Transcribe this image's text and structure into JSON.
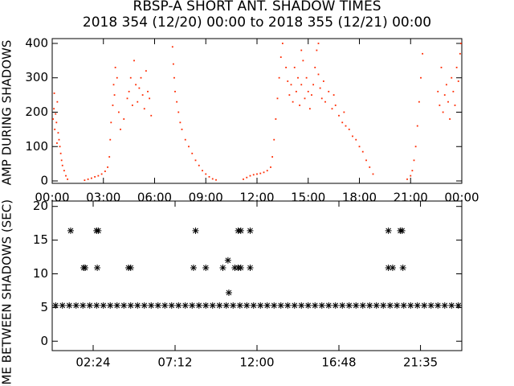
{
  "chart_data": [
    {
      "type": "scatter",
      "marker": "dot",
      "color": "#ff2a00",
      "title": "RBSP-A SHORT ANT. SHADOW TIMES",
      "subtitle": "2018 354 (12/20) 00:00 to 2018 355 (12/21) 00:00",
      "ylabel": "AMP DURING SHADOWS",
      "xlim": [
        0,
        24
      ],
      "ylim": [
        -7,
        414
      ],
      "xticks": [
        {
          "value": 0,
          "label": "00:00"
        },
        {
          "value": 3,
          "label": "03:00"
        },
        {
          "value": 6,
          "label": "06:00"
        },
        {
          "value": 9,
          "label": "09:00"
        },
        {
          "value": 12,
          "label": "12:00"
        },
        {
          "value": 15,
          "label": "15:00"
        },
        {
          "value": 18,
          "label": "18:00"
        },
        {
          "value": 21,
          "label": "21:00"
        },
        {
          "value": 24,
          "label": "00:00"
        }
      ],
      "yticks": [
        0,
        100,
        200,
        300,
        400
      ],
      "x": [
        0.05,
        0.1,
        0.15,
        0.2,
        0.25,
        0.3,
        0.35,
        0.4,
        0.45,
        0.5,
        0.55,
        0.6,
        0.7,
        0.8,
        0.9,
        0.12,
        0.28,
        1.9,
        2.1,
        2.3,
        2.5,
        2.7,
        2.9,
        3.1,
        3.25,
        3.35,
        3.4,
        3.45,
        3.55,
        3.6,
        3.7,
        3.65,
        3.8,
        3.9,
        4.2,
        4.4,
        4.5,
        4.6,
        4.7,
        4.8,
        4.9,
        5.0,
        5.1,
        5.2,
        5.3,
        5.4,
        5.5,
        5.6,
        5.7,
        5.8,
        4.0,
        7.05,
        7.1,
        7.15,
        7.2,
        7.3,
        7.4,
        7.5,
        7.6,
        7.8,
        8.0,
        8.2,
        8.4,
        8.6,
        8.8,
        9.0,
        9.2,
        9.4,
        9.6,
        11.2,
        11.4,
        11.6,
        11.8,
        12.0,
        12.2,
        12.4,
        12.6,
        12.8,
        12.9,
        13.0,
        13.1,
        13.2,
        13.3,
        13.4,
        13.5,
        13.7,
        13.8,
        13.9,
        14.0,
        14.1,
        14.2,
        14.3,
        14.4,
        14.5,
        14.6,
        14.7,
        14.8,
        14.9,
        15.0,
        15.1,
        15.2,
        15.3,
        15.4,
        15.5,
        15.6,
        15.7,
        15.8,
        15.9,
        16.0,
        16.2,
        16.4,
        16.6,
        16.8,
        17.0,
        17.2,
        17.4,
        17.6,
        17.8,
        18.0,
        18.2,
        18.4,
        18.6,
        18.8,
        17.1,
        16.5,
        15.6,
        14.6,
        20.8,
        21.0,
        21.1,
        21.2,
        21.3,
        21.4,
        21.5,
        21.6,
        21.7,
        22.6,
        22.7,
        22.8,
        22.9,
        23.0,
        23.1,
        23.2,
        23.3,
        23.4,
        23.5,
        23.6,
        23.7,
        23.8,
        23.9,
        23.95
      ],
      "values": [
        180,
        210,
        150,
        195,
        170,
        230,
        140,
        120,
        100,
        80,
        60,
        45,
        30,
        15,
        5,
        255,
        110,
        2,
        5,
        8,
        12,
        15,
        20,
        28,
        40,
        70,
        120,
        170,
        220,
        280,
        330,
        250,
        300,
        200,
        180,
        240,
        260,
        300,
        220,
        350,
        280,
        230,
        270,
        300,
        250,
        210,
        320,
        260,
        240,
        190,
        150,
        390,
        340,
        300,
        260,
        230,
        200,
        170,
        150,
        120,
        100,
        80,
        60,
        45,
        30,
        20,
        12,
        6,
        3,
        5,
        10,
        15,
        18,
        20,
        22,
        25,
        30,
        40,
        70,
        120,
        180,
        240,
        300,
        360,
        400,
        330,
        290,
        250,
        280,
        230,
        330,
        260,
        300,
        220,
        280,
        350,
        240,
        300,
        260,
        210,
        250,
        280,
        330,
        380,
        310,
        270,
        240,
        290,
        230,
        260,
        210,
        220,
        190,
        170,
        160,
        150,
        130,
        120,
        100,
        85,
        60,
        40,
        20,
        200,
        250,
        400,
        380,
        5,
        15,
        30,
        60,
        100,
        160,
        230,
        300,
        370,
        260,
        220,
        330,
        200,
        250,
        280,
        230,
        180,
        300,
        260,
        220,
        330,
        290,
        370,
        400
      ]
    },
    {
      "type": "scatter",
      "marker": "asterisk",
      "color": "#000000",
      "ylabel": "TIME BETWEEN SHADOWS (SEC)",
      "xlim": [
        0,
        24
      ],
      "ylim": [
        -1.4,
        20.8
      ],
      "xticks": [
        {
          "value": 2.4,
          "label": "02:24"
        },
        {
          "value": 7.2,
          "label": "07:12"
        },
        {
          "value": 12,
          "label": "12:00"
        },
        {
          "value": 16.8,
          "label": "16:48"
        },
        {
          "value": 21.58,
          "label": "21:35"
        }
      ],
      "yticks": [
        0,
        5,
        10,
        15,
        20
      ],
      "x": [
        0.2,
        0.6,
        1.0,
        1.4,
        1.8,
        2.2,
        2.6,
        3.0,
        3.4,
        3.8,
        4.2,
        4.6,
        5.0,
        5.4,
        5.8,
        6.2,
        6.6,
        7.0,
        7.4,
        7.8,
        8.2,
        8.6,
        9.0,
        9.4,
        9.8,
        10.2,
        10.6,
        11.0,
        11.4,
        11.8,
        12.2,
        12.6,
        13.0,
        13.4,
        13.8,
        14.2,
        14.6,
        15.0,
        15.4,
        15.8,
        16.2,
        16.6,
        17.0,
        17.4,
        17.8,
        18.2,
        18.6,
        19.0,
        19.4,
        19.8,
        20.2,
        20.6,
        21.0,
        21.4,
        21.8,
        22.2,
        22.6,
        23.0,
        23.4,
        23.8,
        1.08,
        1.84,
        1.93,
        2.6,
        2.7,
        2.64,
        4.47,
        4.6,
        8.4,
        8.28,
        9.0,
        10.0,
        10.3,
        10.35,
        10.7,
        10.9,
        11.05,
        10.9,
        11.05,
        11.6,
        11.6,
        19.7,
        19.7,
        19.95,
        20.4,
        20.5,
        20.55
      ],
      "values": [
        5.3,
        5.3,
        5.3,
        5.3,
        5.3,
        5.3,
        5.3,
        5.3,
        5.3,
        5.3,
        5.3,
        5.3,
        5.3,
        5.3,
        5.3,
        5.3,
        5.3,
        5.3,
        5.3,
        5.3,
        5.3,
        5.3,
        5.3,
        5.3,
        5.3,
        5.3,
        5.3,
        5.3,
        5.3,
        5.3,
        5.3,
        5.3,
        5.3,
        5.3,
        5.3,
        5.3,
        5.3,
        5.3,
        5.3,
        5.3,
        5.3,
        5.3,
        5.3,
        5.3,
        5.3,
        5.3,
        5.3,
        5.3,
        5.3,
        5.3,
        5.3,
        5.3,
        5.3,
        5.3,
        5.3,
        5.3,
        5.3,
        5.3,
        5.3,
        5.3,
        16.4,
        10.9,
        10.9,
        16.4,
        16.4,
        10.9,
        10.9,
        10.9,
        16.4,
        10.9,
        10.9,
        10.9,
        12.0,
        7.2,
        10.9,
        10.9,
        10.9,
        16.4,
        16.4,
        16.4,
        10.9,
        16.4,
        10.9,
        10.9,
        16.4,
        16.4,
        10.9
      ]
    }
  ]
}
